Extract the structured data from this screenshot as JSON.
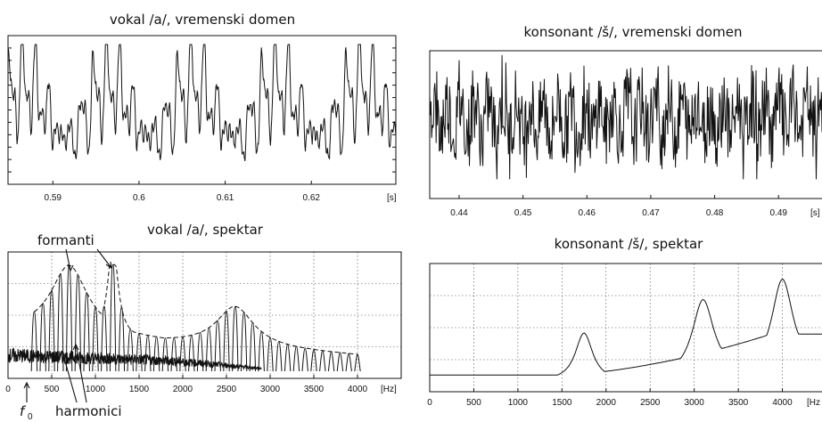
{
  "chart_data": [
    {
      "id": "vowel_time",
      "type": "line",
      "title": "vokal /a/, vremenski domen",
      "x_ticks": [
        "0.59",
        "0.6",
        "0.61",
        "0.62"
      ],
      "x_unit": "[s]",
      "xlim": [
        0.5848,
        0.6298
      ],
      "description_free": true
    },
    {
      "id": "consonant_time",
      "type": "line",
      "title": "konsonant /š/, vremenski domen",
      "x_ticks": [
        "0.44",
        "0.45",
        "0.46",
        "0.47",
        "0.48",
        "0.49"
      ],
      "x_unit": "[s]",
      "xlim": [
        0.4354,
        0.4975
      ]
    },
    {
      "id": "vowel_spectrum",
      "type": "line",
      "title": "vokal /a/, spektar",
      "x_ticks": [
        "0",
        "500",
        "1000",
        "1500",
        "2000",
        "2500",
        "3000",
        "3500",
        "4000"
      ],
      "x_unit": "[Hz]",
      "xlim": [
        0,
        4500
      ],
      "f0_hz": 100,
      "harmonics_hz": [
        300,
        400,
        500,
        600,
        700,
        800,
        900,
        1000,
        1100,
        1200,
        1300,
        1400,
        1500,
        1600,
        1700,
        1800,
        1900,
        2000,
        2100,
        2200,
        2300,
        2400,
        2500,
        2600,
        2700,
        2800,
        2900,
        3000,
        3100,
        3200,
        3300,
        3400,
        3500,
        3600,
        3700,
        3800,
        3900,
        4000
      ],
      "formants_hz": [
        700,
        1200,
        2600
      ],
      "annotations": [
        "formanti",
        "harmonici",
        "f",
        "0"
      ]
    },
    {
      "id": "consonant_spectrum",
      "type": "line",
      "title": "konsonant /š/, spektar",
      "x_ticks": [
        "0",
        "500",
        "1000",
        "1500",
        "2000",
        "2500",
        "3000",
        "3500",
        "4000"
      ],
      "x_unit": "[Hz",
      "xlim": [
        0,
        4500
      ],
      "peaks_hz": [
        1750,
        3100,
        4000
      ]
    }
  ]
}
